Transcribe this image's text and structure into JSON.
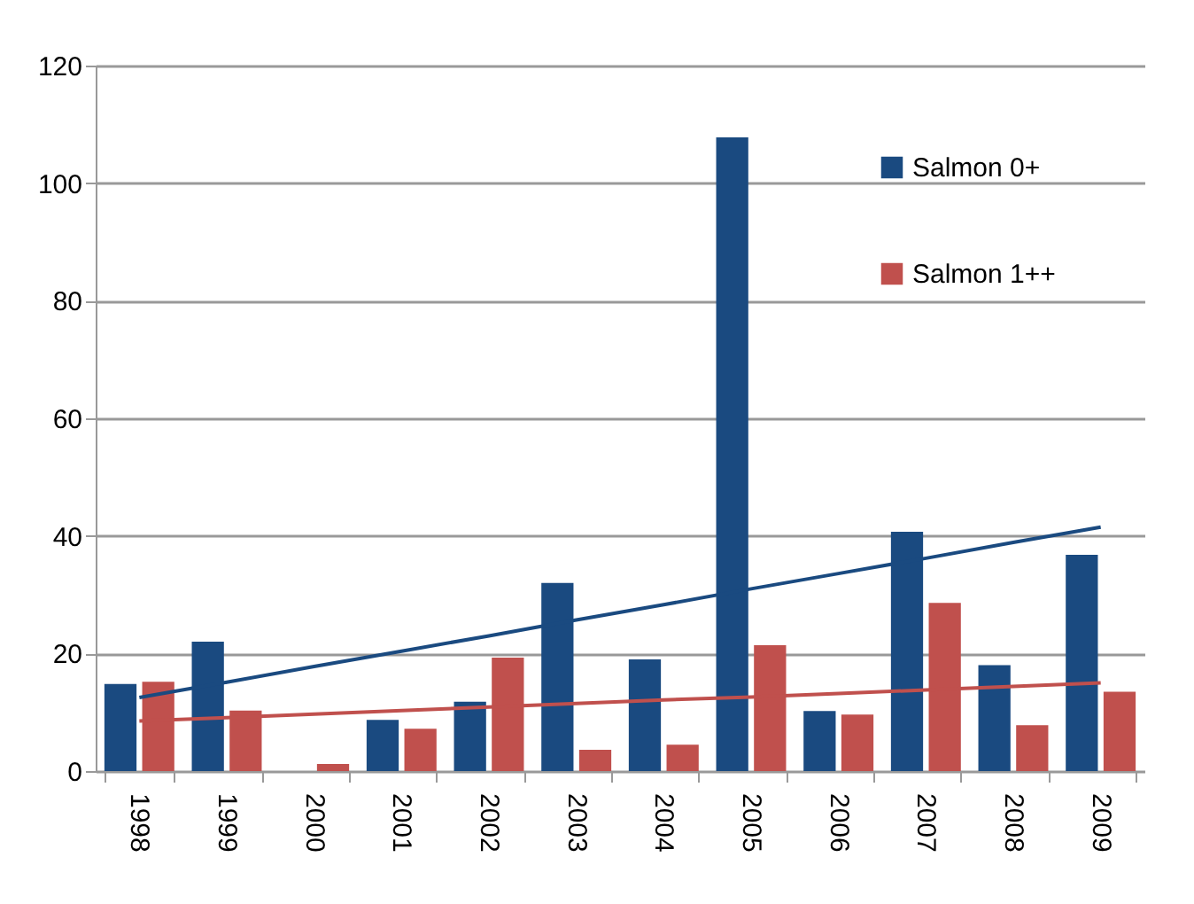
{
  "chart_data": {
    "type": "bar",
    "categories": [
      "1998",
      "1999",
      "2000",
      "2001",
      "2002",
      "2003",
      "2004",
      "2005",
      "2006",
      "2007",
      "2008",
      "2009"
    ],
    "series": [
      {
        "name": "Salmon 0+",
        "color": "#1a4a80",
        "values": [
          14.8,
          22,
          0,
          8.7,
          11.8,
          32,
          19,
          107.8,
          10.2,
          40.7,
          18,
          36.8
        ]
      },
      {
        "name": "Salmon 1++",
        "color": "#c0504d",
        "values": [
          15.2,
          10.3,
          1.2,
          7.2,
          19.3,
          3.6,
          4.5,
          21.4,
          9.6,
          28.6,
          7.8,
          13.5
        ]
      },
      {
        "type": "line",
        "color": "#1a4a80",
        "values": [
          12.5,
          15.1,
          17.8,
          20.4,
          23.0,
          25.7,
          28.3,
          31.0,
          33.6,
          36.2,
          38.9,
          41.5
        ]
      },
      {
        "type": "line",
        "color": "#c0504d",
        "values": [
          8.5,
          9.1,
          9.7,
          10.3,
          10.9,
          11.5,
          12.1,
          12.6,
          13.2,
          13.8,
          14.4,
          15.0
        ]
      }
    ],
    "ylim": [
      0,
      120
    ],
    "yticks": [
      0,
      20,
      40,
      60,
      80,
      100,
      120
    ],
    "grid": "y",
    "legend": "top right"
  }
}
